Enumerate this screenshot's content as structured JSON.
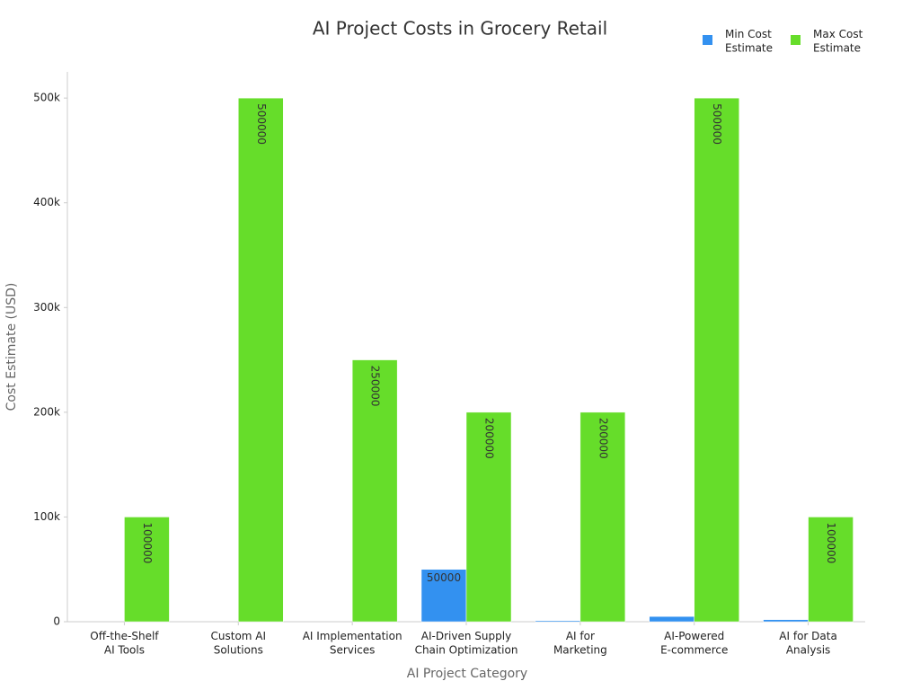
{
  "chart_data": {
    "type": "bar",
    "title": "AI Project Costs in Grocery Retail",
    "x_label": "AI Project Category",
    "y_label": "Cost Estimate (USD)",
    "categories": [
      "Off-the-Shelf\nAI Tools",
      "Custom AI\nSolutions",
      "AI Implementation\nServices",
      "AI-Driven Supply\nChain Optimization",
      "AI for\nMarketing",
      "AI-Powered\nE-commerce",
      "AI for Data\nAnalysis"
    ],
    "series": [
      {
        "name": "Min Cost\nEstimate",
        "color": "#3391f0",
        "values": [
          0,
          0,
          0,
          50000,
          1000,
          5000,
          2000
        ]
      },
      {
        "name": "Max Cost\nEstimate",
        "color": "#66dd2a",
        "values": [
          100000,
          500000,
          250000,
          200000,
          200000,
          500000,
          100000
        ]
      }
    ],
    "ylim": [
      0,
      525000
    ],
    "yticks": [
      0,
      {
        "value": 100000,
        "label": "100k"
      },
      {
        "value": 200000,
        "label": "200k"
      },
      {
        "value": 300000,
        "label": "300k"
      },
      {
        "value": 400000,
        "label": "400k"
      },
      {
        "value": 500000,
        "label": "500k"
      }
    ],
    "legend": "top-right"
  }
}
